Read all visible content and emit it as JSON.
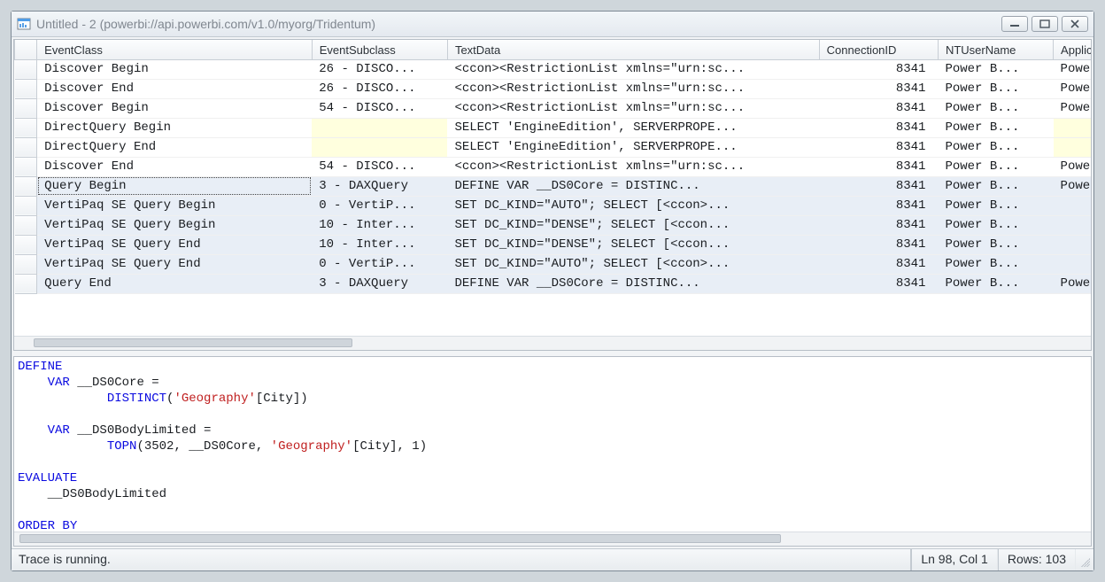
{
  "window": {
    "title": "Untitled - 2 (powerbi://api.powerbi.com/v1.0/myorg/Tridentum)"
  },
  "columns": {
    "event_class": "EventClass",
    "event_subclass": "EventSubclass",
    "text_data": "TextData",
    "connection_id": "ConnectionID",
    "nt_user": "NTUserName",
    "application": "Application"
  },
  "col_widths": {
    "rowhdr": 24,
    "event_class": 296,
    "event_subclass": 146,
    "text_data": 400,
    "connection_id": 128,
    "nt_user": 124,
    "application": 120
  },
  "rows": [
    {
      "event": "Discover Begin",
      "sub": "26 - DISCO...",
      "text": "<ccon><RestrictionList xmlns=\"urn:sc...",
      "conn": "8341",
      "user": "Power B...",
      "app": "PowerBI",
      "sel": false,
      "yellow": false
    },
    {
      "event": "Discover End",
      "sub": "26 - DISCO...",
      "text": "<ccon><RestrictionList xmlns=\"urn:sc...",
      "conn": "8341",
      "user": "Power B...",
      "app": "PowerBI",
      "sel": false,
      "yellow": false
    },
    {
      "event": "Discover Begin",
      "sub": "54 - DISCO...",
      "text": "<ccon><RestrictionList xmlns=\"urn:sc...",
      "conn": "8341",
      "user": "Power B...",
      "app": "PowerBI",
      "sel": false,
      "yellow": false
    },
    {
      "event": "DirectQuery Begin",
      "sub": "",
      "text": " SELECT 'EngineEdition', SERVERPROPE...",
      "conn": "8341",
      "user": "Power B...",
      "app": "",
      "sel": false,
      "yellow": true
    },
    {
      "event": "DirectQuery End",
      "sub": "",
      "text": " SELECT 'EngineEdition', SERVERPROPE...",
      "conn": "8341",
      "user": "Power B...",
      "app": "",
      "sel": false,
      "yellow": true
    },
    {
      "event": "Discover End",
      "sub": "54 - DISCO...",
      "text": "<ccon><RestrictionList xmlns=\"urn:sc...",
      "conn": "8341",
      "user": "Power B...",
      "app": "PowerBI",
      "sel": false,
      "yellow": false
    },
    {
      "event": "Query Begin",
      "sub": "3 - DAXQuery",
      "text": "DEFINE   VAR __DS0Core =     DISTINC...",
      "conn": "8341",
      "user": "Power B...",
      "app": "PowerBI",
      "sel": true,
      "yellow": false,
      "primary": true
    },
    {
      "event": "VertiPaq SE Query Begin",
      "sub": "0 - VertiP...",
      "text": "SET DC_KIND=\"AUTO\";  SELECT  [<ccon>...",
      "conn": "8341",
      "user": "Power B...",
      "app": "",
      "sel": true,
      "yellow": false
    },
    {
      "event": "VertiPaq SE Query Begin",
      "sub": "10 - Inter...",
      "text": "SET DC_KIND=\"DENSE\";  SELECT  [<ccon...",
      "conn": "8341",
      "user": "Power B...",
      "app": "",
      "sel": true,
      "yellow": false
    },
    {
      "event": "VertiPaq SE Query End",
      "sub": "10 - Inter...",
      "text": "SET DC_KIND=\"DENSE\";  SELECT  [<ccon...",
      "conn": "8341",
      "user": "Power B...",
      "app": "",
      "sel": true,
      "yellow": false
    },
    {
      "event": "VertiPaq SE Query End",
      "sub": "0 - VertiP...",
      "text": "SET DC_KIND=\"AUTO\";  SELECT  [<ccon>...",
      "conn": "8341",
      "user": "Power B...",
      "app": "",
      "sel": true,
      "yellow": false
    },
    {
      "event": "Query End",
      "sub": "3 - DAXQuery",
      "text": "DEFINE   VAR __DS0Core =     DISTINC...",
      "conn": "8341",
      "user": "Power B...",
      "app": "PowerBI",
      "sel": true,
      "yellow": false
    }
  ],
  "code": {
    "tokens": [
      {
        "t": "DEFINE",
        "c": "kw"
      },
      {
        "t": "\n    ",
        "c": ""
      },
      {
        "t": "VAR",
        "c": "kw"
      },
      {
        "t": " __DS0Core = \n            ",
        "c": ""
      },
      {
        "t": "DISTINCT",
        "c": "kw"
      },
      {
        "t": "(",
        "c": ""
      },
      {
        "t": "'Geography'",
        "c": "str"
      },
      {
        "t": "[City])\n\n    ",
        "c": ""
      },
      {
        "t": "VAR",
        "c": "kw"
      },
      {
        "t": " __DS0BodyLimited = \n            ",
        "c": ""
      },
      {
        "t": "TOPN",
        "c": "kw"
      },
      {
        "t": "(3502, __DS0Core, ",
        "c": ""
      },
      {
        "t": "'Geography'",
        "c": "str"
      },
      {
        "t": "[City], 1)\n\n",
        "c": ""
      },
      {
        "t": "EVALUATE",
        "c": "kw"
      },
      {
        "t": "\n    __DS0BodyLimited\n\n",
        "c": ""
      },
      {
        "t": "ORDER",
        "c": "kw"
      },
      {
        "t": " ",
        "c": ""
      },
      {
        "t": "BY",
        "c": "kw"
      }
    ]
  },
  "status": {
    "message": "Trace is running.",
    "position": "Ln 98, Col 1",
    "rows": "Rows: 103"
  }
}
